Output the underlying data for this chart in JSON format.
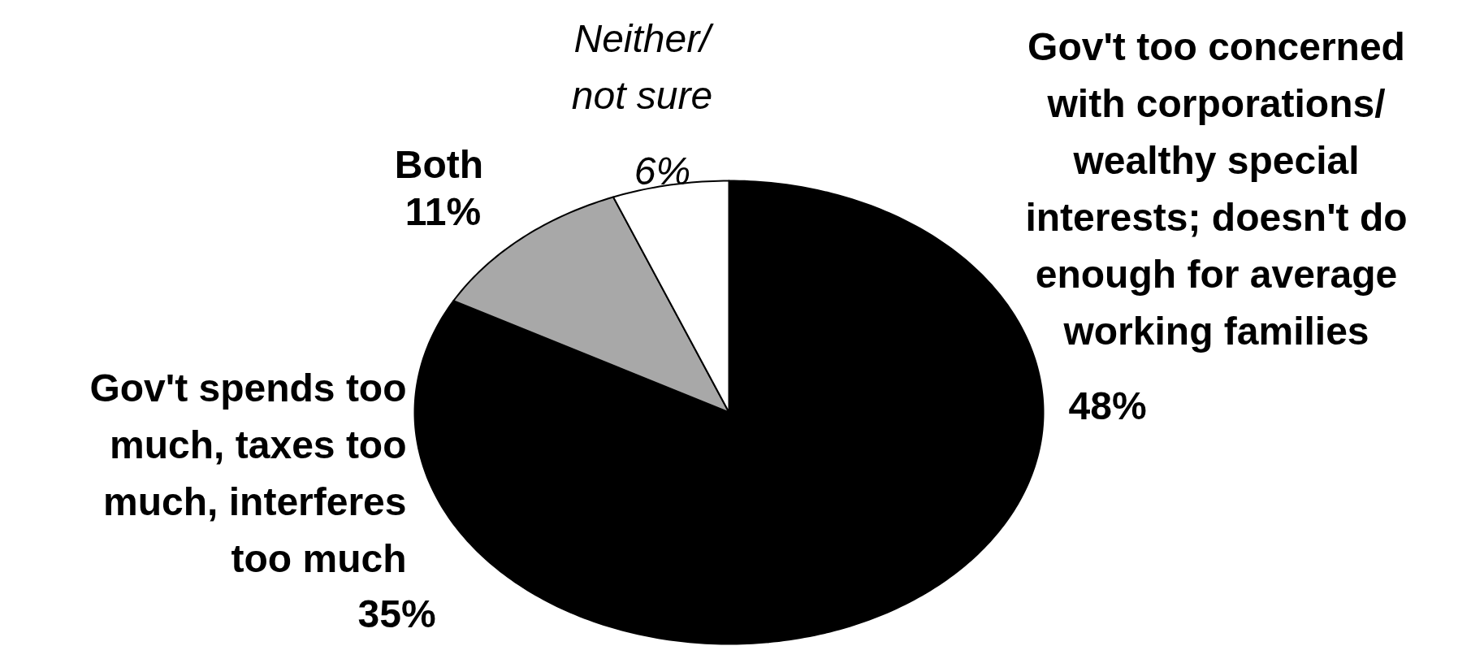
{
  "chart_data": {
    "type": "pie",
    "categories": [
      "Gov't too concerned with corporations/ wealthy special interests; doesn't do enough for average working families",
      "Gov't spends too much, taxes too much, interferes too much",
      "Both",
      "Neither/ not sure"
    ],
    "values": [
      48,
      35,
      11,
      6
    ],
    "colors": [
      "#000000",
      "#000000",
      "#a8a8a8",
      "#ffffff"
    ],
    "value_labels": [
      "48%",
      "35%",
      "11%",
      "6%"
    ]
  }
}
